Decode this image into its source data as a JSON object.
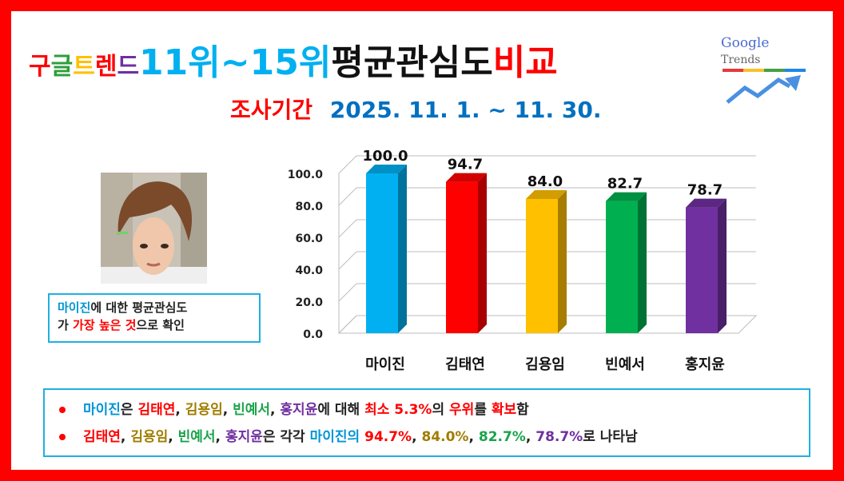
{
  "title": {
    "parts": [
      {
        "text": "구",
        "color": "#ff0000",
        "size": "small"
      },
      {
        "text": "글",
        "color": "#2e9e3c",
        "size": "small"
      },
      {
        "text": "트",
        "color": "#ffc000",
        "size": "small"
      },
      {
        "text": "렌",
        "color": "#ff0000",
        "size": "small"
      },
      {
        "text": "드",
        "color": "#7030a0",
        "size": "small"
      },
      {
        "text": "11위~15위 ",
        "color": "#00b0f0",
        "size": "big"
      },
      {
        "text": "평균관심도 ",
        "color": "#111111",
        "size": "big"
      },
      {
        "text": "비교",
        "color": "#ff0000",
        "size": "big"
      }
    ]
  },
  "subtitle": {
    "label": "조사기간",
    "label_color": "#ff0000",
    "period": "2025. 11. 1. ~ 11. 30.",
    "period_color": "#0070c0"
  },
  "logo": {
    "text_a": "Google",
    "text_b": "Trends",
    "icon": "trend-arrow-icon"
  },
  "photo": {
    "icon": "person-portrait"
  },
  "note": {
    "line1": [
      {
        "text": "마이진",
        "cls": "c-blue"
      },
      {
        "text": "에 대한 평균관심도",
        "cls": "c-dark"
      }
    ],
    "line2": [
      {
        "text": "가 ",
        "cls": "c-dark"
      },
      {
        "text": "가장 높은 것",
        "cls": "c-red"
      },
      {
        "text": "으로 확인",
        "cls": "c-dark"
      }
    ]
  },
  "chart_data": {
    "type": "bar",
    "categories": [
      "마이진",
      "김태연",
      "김용임",
      "빈예서",
      "홍지윤"
    ],
    "values": [
      100.0,
      94.7,
      84.0,
      82.7,
      78.7
    ],
    "value_labels": [
      "100.0",
      "94.7",
      "84.0",
      "82.7",
      "78.7"
    ],
    "colors": [
      "#00b0f0",
      "#ff0000",
      "#ffc000",
      "#00b050",
      "#7030a0"
    ],
    "yticks": [
      "0.0",
      "20.0",
      "40.0",
      "60.0",
      "80.0",
      "100.0"
    ],
    "ylim": [
      0,
      100
    ],
    "grid": true,
    "xlabel": "",
    "ylabel": ""
  },
  "summary": {
    "row1": [
      {
        "text": "마이진",
        "cls": "c-blue"
      },
      {
        "text": "은 ",
        "cls": "c-dark"
      },
      {
        "text": "김태연",
        "cls": "c-red"
      },
      {
        "text": ", ",
        "cls": "c-dark"
      },
      {
        "text": "김용임",
        "cls": "c-gold"
      },
      {
        "text": ", ",
        "cls": "c-dark"
      },
      {
        "text": "빈예서",
        "cls": "c-green"
      },
      {
        "text": ", ",
        "cls": "c-dark"
      },
      {
        "text": "홍지윤",
        "cls": "c-purple"
      },
      {
        "text": "에 대해 ",
        "cls": "c-dark"
      },
      {
        "text": "최소 5.3%",
        "cls": "c-red"
      },
      {
        "text": "의 ",
        "cls": "c-dark"
      },
      {
        "text": "우위",
        "cls": "c-red"
      },
      {
        "text": "를 ",
        "cls": "c-dark"
      },
      {
        "text": "확보",
        "cls": "c-red"
      },
      {
        "text": "함",
        "cls": "c-dark"
      }
    ],
    "row2": [
      {
        "text": "김태연",
        "cls": "c-red"
      },
      {
        "text": ", ",
        "cls": "c-dark"
      },
      {
        "text": "김용임",
        "cls": "c-gold"
      },
      {
        "text": ", ",
        "cls": "c-dark"
      },
      {
        "text": "빈예서",
        "cls": "c-green"
      },
      {
        "text": ", ",
        "cls": "c-dark"
      },
      {
        "text": "홍지윤",
        "cls": "c-purple"
      },
      {
        "text": "은 각각 ",
        "cls": "c-dark"
      },
      {
        "text": "마이진의 ",
        "cls": "c-blue"
      },
      {
        "text": "94.7%",
        "cls": "c-red"
      },
      {
        "text": ", ",
        "cls": "c-dark"
      },
      {
        "text": "84.0%",
        "cls": "c-gold"
      },
      {
        "text": ", ",
        "cls": "c-dark"
      },
      {
        "text": "82.7%",
        "cls": "c-green"
      },
      {
        "text": ", ",
        "cls": "c-dark"
      },
      {
        "text": "78.7%",
        "cls": "c-purple"
      },
      {
        "text": "로 나타남",
        "cls": "c-dark"
      }
    ]
  }
}
